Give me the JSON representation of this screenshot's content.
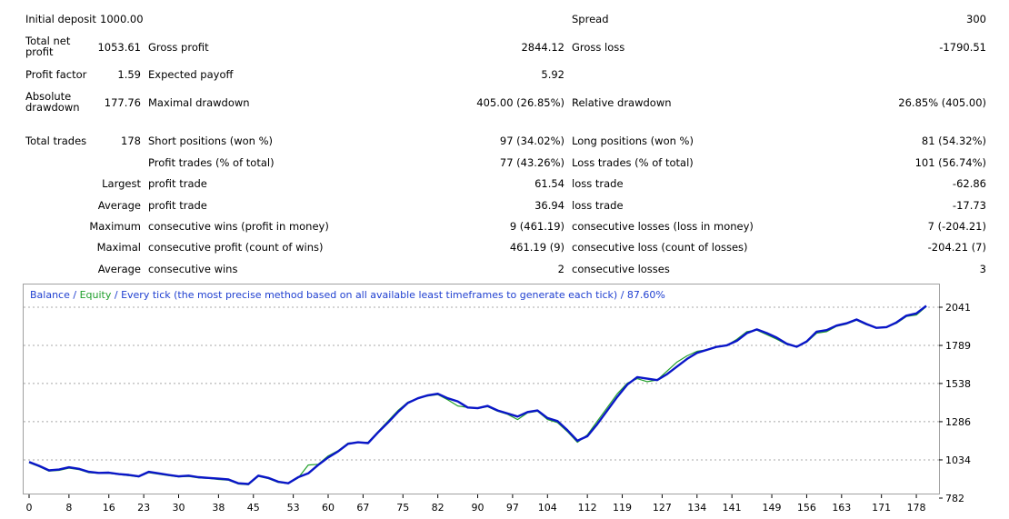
{
  "report": {
    "initial_deposit": {
      "label": "Initial deposit",
      "value": "1000.00"
    },
    "spread": {
      "label": "Spread",
      "value": "300"
    },
    "total_net_profit": {
      "label": "Total net profit",
      "value": "1053.61"
    },
    "gross_profit": {
      "label": "Gross profit",
      "value": "2844.12"
    },
    "gross_loss": {
      "label": "Gross loss",
      "value": "-1790.51"
    },
    "profit_factor": {
      "label": "Profit factor",
      "value": "1.59"
    },
    "expected_payoff": {
      "label": "Expected payoff",
      "value": "5.92"
    },
    "absolute_drawdown": {
      "label": "Absolute drawdown",
      "value": "177.76"
    },
    "maximal_drawdown": {
      "label": "Maximal drawdown",
      "value": "405.00 (26.85%)"
    },
    "relative_drawdown": {
      "label": "Relative drawdown",
      "value": "26.85% (405.00)"
    },
    "total_trades": {
      "label": "Total trades",
      "value": "178"
    },
    "short_positions": {
      "label": "Short positions (won %)",
      "value": "97 (34.02%)"
    },
    "long_positions": {
      "label": "Long positions (won %)",
      "value": "81 (54.32%)"
    },
    "profit_trades": {
      "label": "Profit trades (% of total)",
      "value": "77 (43.26%)"
    },
    "loss_trades": {
      "label": "Loss trades (% of total)",
      "value": "101 (56.74%)"
    },
    "largest": {
      "prefix": "Largest",
      "profit_label": "profit trade",
      "profit_value": "61.54",
      "loss_label": "loss trade",
      "loss_value": "-62.86"
    },
    "average": {
      "prefix": "Average",
      "profit_label": "profit trade",
      "profit_value": "36.94",
      "loss_label": "loss trade",
      "loss_value": "-17.73"
    },
    "maximum": {
      "prefix": "Maximum",
      "wins_label": "consecutive wins (profit in money)",
      "wins_value": "9 (461.19)",
      "losses_label": "consecutive losses (loss in money)",
      "losses_value": "7 (-204.21)"
    },
    "maximal": {
      "prefix": "Maximal",
      "profit_label": "consecutive profit (count of wins)",
      "profit_value": "461.19 (9)",
      "loss_label": "consecutive loss (count of losses)",
      "loss_value": "-204.21 (7)"
    },
    "average_consec": {
      "prefix": "Average",
      "wins_label": "consecutive wins",
      "wins_value": "2",
      "losses_label": "consecutive losses",
      "losses_value": "3"
    }
  },
  "chart_data": {
    "type": "line",
    "legend": {
      "balance": "Balance",
      "sep": " / ",
      "equity": "Equity",
      "rest": " / Every tick (the most precise method based on all available least timeframes to generate each tick) / 87.60%"
    },
    "colors": {
      "balance": "#0a16c8",
      "equity": "#22a02a",
      "grid": "#a8a8a8",
      "axis": "#000000"
    },
    "xlim": [
      0,
      182
    ],
    "ylim": [
      782,
      2090
    ],
    "x_ticks": [
      0,
      8,
      16,
      23,
      30,
      38,
      45,
      53,
      60,
      67,
      75,
      82,
      90,
      97,
      104,
      112,
      119,
      127,
      134,
      141,
      149,
      156,
      163,
      171,
      178
    ],
    "y_ticks": [
      2041,
      1789,
      1538,
      1286,
      1034,
      782
    ],
    "grid": true,
    "series": [
      {
        "name": "Balance",
        "x": [
          0,
          2,
          4,
          6,
          8,
          10,
          12,
          14,
          16,
          18,
          20,
          22,
          24,
          26,
          28,
          30,
          32,
          34,
          36,
          38,
          40,
          42,
          44,
          46,
          48,
          50,
          52,
          54,
          56,
          58,
          60,
          62,
          64,
          66,
          68,
          70,
          72,
          74,
          76,
          78,
          80,
          82,
          84,
          86,
          88,
          90,
          92,
          94,
          96,
          98,
          100,
          102,
          104,
          106,
          108,
          110,
          112,
          114,
          116,
          118,
          120,
          122,
          124,
          126,
          128,
          130,
          132,
          134,
          136,
          138,
          140,
          142,
          144,
          146,
          148,
          150,
          152,
          154,
          156,
          158,
          160,
          162,
          164,
          166,
          168,
          170,
          172,
          174,
          176,
          178,
          180
        ],
        "values": [
          1020,
          995,
          965,
          970,
          985,
          975,
          955,
          948,
          950,
          940,
          935,
          925,
          955,
          945,
          935,
          925,
          930,
          920,
          915,
          910,
          905,
          880,
          875,
          930,
          915,
          890,
          880,
          920,
          945,
          1000,
          1050,
          1090,
          1140,
          1150,
          1145,
          1215,
          1280,
          1350,
          1410,
          1440,
          1460,
          1470,
          1440,
          1420,
          1380,
          1375,
          1390,
          1360,
          1340,
          1320,
          1350,
          1360,
          1310,
          1290,
          1230,
          1160,
          1190,
          1270,
          1360,
          1450,
          1530,
          1580,
          1570,
          1560,
          1600,
          1650,
          1700,
          1740,
          1760,
          1780,
          1790,
          1820,
          1870,
          1895,
          1870,
          1840,
          1800,
          1780,
          1815,
          1880,
          1890,
          1920,
          1935,
          1960,
          1930,
          1905,
          1910,
          1940,
          1985,
          2000,
          2050
        ]
      },
      {
        "name": "Equity",
        "x": [
          0,
          2,
          4,
          6,
          8,
          10,
          12,
          14,
          16,
          18,
          20,
          22,
          24,
          26,
          28,
          30,
          32,
          34,
          36,
          38,
          40,
          42,
          44,
          46,
          48,
          50,
          52,
          54,
          56,
          58,
          60,
          62,
          64,
          66,
          68,
          70,
          72,
          74,
          76,
          78,
          80,
          82,
          84,
          86,
          88,
          90,
          92,
          94,
          96,
          98,
          100,
          102,
          104,
          106,
          108,
          110,
          112,
          114,
          116,
          118,
          120,
          122,
          124,
          126,
          128,
          130,
          132,
          134,
          136,
          138,
          140,
          142,
          144,
          146,
          148,
          150,
          152,
          154,
          156,
          158,
          160,
          162,
          164,
          166,
          168,
          170,
          172,
          174,
          176,
          178,
          180
        ],
        "values": [
          1015,
          990,
          960,
          965,
          980,
          970,
          950,
          945,
          945,
          938,
          930,
          922,
          950,
          940,
          930,
          922,
          925,
          915,
          912,
          905,
          900,
          875,
          870,
          925,
          910,
          885,
          878,
          915,
          1000,
          1005,
          1060,
          1095,
          1145,
          1150,
          1150,
          1220,
          1290,
          1360,
          1415,
          1440,
          1455,
          1465,
          1430,
          1390,
          1380,
          1375,
          1385,
          1355,
          1335,
          1300,
          1345,
          1355,
          1300,
          1280,
          1220,
          1150,
          1200,
          1290,
          1380,
          1470,
          1540,
          1570,
          1550,
          1560,
          1620,
          1680,
          1720,
          1750,
          1760,
          1780,
          1790,
          1830,
          1880,
          1890,
          1860,
          1830,
          1795,
          1780,
          1810,
          1870,
          1880,
          1915,
          1930,
          1955,
          1925,
          1905,
          1910,
          1935,
          1980,
          1990,
          2045
        ]
      }
    ]
  }
}
